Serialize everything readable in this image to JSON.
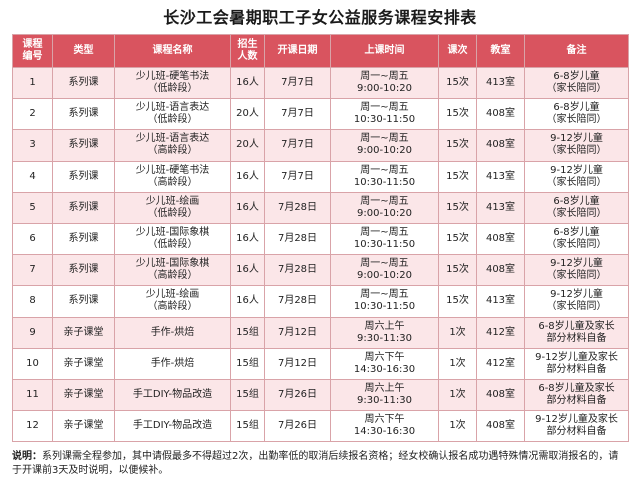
{
  "title": "长沙工会暑期职工子女公益服务课程安排表",
  "headers": [
    "课程\n编号",
    "类型",
    "课程名称",
    "招生\n人数",
    "开课日期",
    "上课时间",
    "课次",
    "教室",
    "备注"
  ],
  "rows": [
    [
      "1",
      "系列课",
      "少儿班-硬笔书法\n（低龄段）",
      "16人",
      "7月7日",
      "周一~周五\n9:00-10:20",
      "15次",
      "413室",
      "6-8岁儿童\n（家长陪同）"
    ],
    [
      "2",
      "系列课",
      "少儿班-语言表达\n（低龄段）",
      "20人",
      "7月7日",
      "周一~周五\n10:30-11:50",
      "15次",
      "408室",
      "6-8岁儿童\n（家长陪同）"
    ],
    [
      "3",
      "系列课",
      "少儿班-语言表达\n（高龄段）",
      "20人",
      "7月7日",
      "周一~周五\n9:00-10:20",
      "15次",
      "408室",
      "9-12岁儿童\n（家长陪同）"
    ],
    [
      "4",
      "系列课",
      "少儿班-硬笔书法\n（高龄段）",
      "16人",
      "7月7日",
      "周一~周五\n10:30-11:50",
      "15次",
      "413室",
      "9-12岁儿童\n（家长陪同）"
    ],
    [
      "5",
      "系列课",
      "少儿班-绘画\n（低龄段）",
      "16人",
      "7月28日",
      "周一~周五\n9:00-10:20",
      "15次",
      "413室",
      "6-8岁儿童\n（家长陪同）"
    ],
    [
      "6",
      "系列课",
      "少儿班-国际象棋\n（低龄段）",
      "16人",
      "7月28日",
      "周一~周五\n10:30-11:50",
      "15次",
      "408室",
      "6-8岁儿童\n（家长陪同）"
    ],
    [
      "7",
      "系列课",
      "少儿班-国际象棋\n（高龄段）",
      "16人",
      "7月28日",
      "周一~周五\n9:00-10:20",
      "15次",
      "408室",
      "9-12岁儿童\n（家长陪同）"
    ],
    [
      "8",
      "系列课",
      "少儿班-绘画\n（高龄段）",
      "16人",
      "7月28日",
      "周一~周五\n10:30-11:50",
      "15次",
      "413室",
      "9-12岁儿童\n（家长陪同）"
    ],
    [
      "9",
      "亲子课堂",
      "手作-烘焙",
      "15组",
      "7月12日",
      "周六上午\n9:30-11:30",
      "1次",
      "412室",
      "6-8岁儿童及家长\n部分材料自备"
    ],
    [
      "10",
      "亲子课堂",
      "手作-烘焙",
      "15组",
      "7月12日",
      "周六下午\n14:30-16:30",
      "1次",
      "412室",
      "9-12岁儿童及家长\n部分材料自备"
    ],
    [
      "11",
      "亲子课堂",
      "手工DIY-物品改造",
      "15组",
      "7月26日",
      "周六上午\n9:30-11:30",
      "1次",
      "408室",
      "6-8岁儿童及家长\n部分材料自备"
    ],
    [
      "12",
      "亲子课堂",
      "手工DIY-物品改造",
      "15组",
      "7月26日",
      "周六下午\n14:30-16:30",
      "1次",
      "408室",
      "9-12岁儿童及家长\n部分材料自备"
    ]
  ],
  "note": {
    "label": "说明：",
    "text": "系列课需全程参加，其中请假最多不得超过2次，出勤率低的取消后续报名资格；经女校确认报名成功遇特殊情况需取消报名的，请于开课前3天及时说明，以便候补。"
  },
  "colors": {
    "header_bg": "#d9545f",
    "stripe_bg": "#fbe6e8",
    "border": "#d9a3a8"
  }
}
